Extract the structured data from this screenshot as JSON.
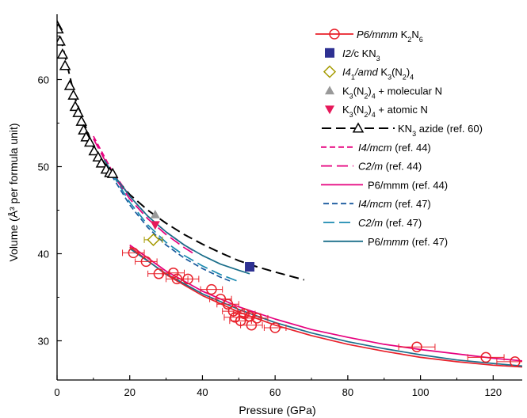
{
  "chart_data": {
    "type": "scatter",
    "xlabel": "Pressure (GPa)",
    "ylabel": "Volume (Å³ per formula unit)",
    "xlim": [
      0,
      128
    ],
    "ylim": [
      25.5,
      67.5
    ],
    "xticks": [
      0,
      20,
      40,
      60,
      80,
      100,
      120
    ],
    "yticks": [
      30,
      40,
      50,
      60
    ],
    "legend_position": "top-right",
    "grid": false,
    "series": [
      {
        "key": "k2n6",
        "label_parts": [
          {
            "t": "P6/mmm",
            "i": true
          },
          {
            "t": " K"
          },
          {
            "t": "2",
            "sub": true
          },
          {
            "t": "N"
          },
          {
            "t": "6",
            "sub": true
          }
        ],
        "color": "#e8202a",
        "kind": "scatter-line",
        "marker": "circle-open",
        "points": [
          [
            21,
            40.1,
            3,
            0
          ],
          [
            24.5,
            39.1,
            3,
            0
          ],
          [
            28,
            37.7,
            3,
            0
          ],
          [
            32,
            37.8,
            3,
            0
          ],
          [
            33,
            37.1,
            3,
            0
          ],
          [
            36,
            37.1,
            3,
            0
          ],
          [
            42.5,
            35.9,
            3,
            0
          ],
          [
            45,
            34.8,
            3,
            0
          ],
          [
            47,
            34.2,
            3,
            0
          ],
          [
            48.5,
            33.4,
            3,
            0
          ],
          [
            49,
            32.7,
            3,
            0
          ],
          [
            50.5,
            32.3,
            3,
            0
          ],
          [
            51.5,
            33.1,
            3,
            0
          ],
          [
            53,
            32.8,
            3,
            0
          ],
          [
            53.5,
            31.8,
            3,
            0
          ],
          [
            55,
            32.6,
            3,
            0
          ],
          [
            60,
            31.5,
            3,
            0
          ],
          [
            99,
            29.3,
            5,
            0
          ],
          [
            118,
            28.1,
            5,
            0
          ],
          [
            126,
            27.6,
            5,
            0
          ]
        ],
        "fit": [
          [
            20,
            40.8
          ],
          [
            30,
            37.6
          ],
          [
            40,
            35.2
          ],
          [
            50,
            33.3
          ],
          [
            60,
            31.8
          ],
          [
            70,
            30.6
          ],
          [
            80,
            29.6
          ],
          [
            90,
            28.8
          ],
          [
            100,
            28.1
          ],
          [
            110,
            27.6
          ],
          [
            120,
            27.2
          ],
          [
            128,
            27.0
          ]
        ]
      },
      {
        "key": "kn3-i2c",
        "label_parts": [
          {
            "t": "I2/",
            "i": true
          },
          {
            "t": "c KN"
          },
          {
            "t": "3",
            "sub": true
          }
        ],
        "color": "#2e3192",
        "kind": "scatter",
        "marker": "square-filled",
        "points": [
          [
            53,
            38.5
          ]
        ]
      },
      {
        "key": "k3n2-i41",
        "label_parts": [
          {
            "t": "I4",
            "i": true
          },
          {
            "t": "1",
            "sub": true
          },
          {
            "t": "/amd",
            "i": true
          },
          {
            "t": " K"
          },
          {
            "t": "3",
            "sub": true
          },
          {
            "t": "(N"
          },
          {
            "t": "2",
            "sub": true
          },
          {
            "t": ")"
          },
          {
            "t": "4",
            "sub": true
          }
        ],
        "color": "#a59a00",
        "kind": "scatter",
        "marker": "diamond-open",
        "points": [
          [
            26.5,
            41.6,
            2.5,
            0
          ]
        ]
      },
      {
        "key": "mol-n",
        "label_parts": [
          {
            "t": "K"
          },
          {
            "t": "3",
            "sub": true
          },
          {
            "t": "(N"
          },
          {
            "t": "2",
            "sub": true
          },
          {
            "t": ")"
          },
          {
            "t": "4",
            "sub": true
          },
          {
            "t": " + molecular N"
          }
        ],
        "color": "#999999",
        "kind": "scatter",
        "marker": "triangle-up-filled",
        "points": [
          [
            27,
            44.5
          ]
        ]
      },
      {
        "key": "atom-n",
        "label_parts": [
          {
            "t": "K"
          },
          {
            "t": "3",
            "sub": true
          },
          {
            "t": "(N"
          },
          {
            "t": "2",
            "sub": true
          },
          {
            "t": ")"
          },
          {
            "t": "4",
            "sub": true
          },
          {
            "t": " + atomic N"
          }
        ],
        "color": "#e6195a",
        "kind": "scatter",
        "marker": "triangle-down-filled",
        "points": [
          [
            27,
            43.3
          ]
        ]
      },
      {
        "key": "kn3-azide",
        "label_parts": [
          {
            "t": "KN"
          },
          {
            "t": "3",
            "sub": true
          },
          {
            "t": " azide (ref. 60)"
          }
        ],
        "color": "#000000",
        "kind": "scatter-line",
        "marker": "triangle-up-open",
        "dash": "12,6",
        "points": [
          [
            0,
            66.2
          ],
          [
            0.3,
            65.8
          ],
          [
            0.8,
            64.4
          ],
          [
            1.5,
            62.9
          ],
          [
            2.2,
            61.6
          ],
          [
            3.5,
            59.3
          ],
          [
            4.5,
            58.2
          ],
          [
            5.0,
            56.9
          ],
          [
            5.8,
            56.2
          ],
          [
            6.7,
            55.2
          ],
          [
            7.3,
            54.2
          ],
          [
            8.0,
            53.4
          ],
          [
            9.0,
            52.8
          ],
          [
            10.2,
            51.8
          ],
          [
            11.3,
            51.1
          ],
          [
            12.2,
            50.4
          ],
          [
            13.5,
            49.7
          ],
          [
            14.5,
            49.3
          ],
          [
            15.3,
            49.2
          ]
        ],
        "fit": [
          [
            0,
            66.5
          ],
          [
            5,
            57.8
          ],
          [
            10,
            52.2
          ],
          [
            15,
            49.2
          ],
          [
            20,
            46.8
          ],
          [
            25,
            45.0
          ],
          [
            30,
            43.5
          ],
          [
            35,
            42.2
          ],
          [
            40,
            41.1
          ],
          [
            45,
            40.1
          ],
          [
            50,
            39.2
          ],
          [
            55,
            38.5
          ],
          [
            60,
            37.9
          ],
          [
            68,
            37.0
          ]
        ]
      },
      {
        "key": "i4mcm-44",
        "label_parts": [
          {
            "t": "I4/mcm",
            "i": true
          },
          {
            "t": " (ref. 44)"
          }
        ],
        "color": "#e6007e",
        "kind": "line",
        "dash": "7,4",
        "fit": [
          [
            10,
            53.5
          ],
          [
            15,
            49.6
          ],
          [
            20,
            46.6
          ],
          [
            25,
            44.3
          ],
          [
            30,
            42.5
          ],
          [
            35,
            41.0
          ],
          [
            38,
            40.2
          ]
        ]
      },
      {
        "key": "c2m-44",
        "label_parts": [
          {
            "t": "C2/m",
            "i": true
          },
          {
            "t": " (ref. 44)"
          }
        ],
        "color": "#e6007e",
        "kind": "line",
        "dash": "14,6",
        "fit": [
          [
            10,
            53.2
          ],
          [
            15,
            49.3
          ],
          [
            20,
            46.3
          ],
          [
            25,
            44.0
          ],
          [
            30,
            42.2
          ],
          [
            35,
            40.7
          ],
          [
            38,
            39.9
          ]
        ]
      },
      {
        "key": "p6mmm-44",
        "label_parts": [
          {
            "t": "P6/mmm (ref. 44)"
          }
        ],
        "color": "#e6007e",
        "kind": "line",
        "dash": "",
        "fit": [
          [
            20,
            41.0
          ],
          [
            30,
            38.0
          ],
          [
            40,
            35.7
          ],
          [
            50,
            33.9
          ],
          [
            60,
            32.5
          ],
          [
            70,
            31.3
          ],
          [
            80,
            30.4
          ],
          [
            90,
            29.6
          ],
          [
            100,
            29.0
          ],
          [
            110,
            28.5
          ],
          [
            120,
            28.0
          ],
          [
            128,
            27.7
          ]
        ]
      },
      {
        "key": "i4mcm-47",
        "label_parts": [
          {
            "t": "I4/mcm",
            "i": true
          },
          {
            "t": " (ref. 47)"
          }
        ],
        "color": "#1a5a9e",
        "kind": "line",
        "dash": "7,4",
        "fit": [
          [
            15,
            49.0
          ],
          [
            20,
            45.6
          ],
          [
            25,
            43.0
          ],
          [
            30,
            41.0
          ],
          [
            35,
            39.5
          ],
          [
            40,
            38.3
          ],
          [
            45,
            37.3
          ],
          [
            48,
            36.8
          ]
        ]
      },
      {
        "key": "c2m-47",
        "label_parts": [
          {
            "t": "C2/m",
            "i": true
          },
          {
            "t": " (ref. 47)"
          }
        ],
        "color": "#1a8ab0",
        "kind": "line",
        "dash": "14,6",
        "fit": [
          [
            15,
            49.3
          ],
          [
            20,
            45.9
          ],
          [
            25,
            43.3
          ],
          [
            30,
            41.3
          ],
          [
            35,
            39.8
          ],
          [
            40,
            38.6
          ],
          [
            45,
            37.6
          ],
          [
            50,
            36.8
          ]
        ]
      },
      {
        "key": "p6mmm-47",
        "label_parts": [
          {
            "t": "P6/"
          },
          {
            "t": "mmm",
            "i": true
          },
          {
            "t": " (ref. 47)"
          }
        ],
        "color": "#1a6e8a",
        "kind": "line",
        "dash": "",
        "fit": [
          [
            13,
            50.8
          ],
          [
            15,
            49.4
          ],
          [
            20,
            46.6
          ],
          [
            25,
            44.3
          ],
          [
            30,
            42.5
          ],
          [
            35,
            41.0
          ],
          [
            40,
            39.8
          ],
          [
            45,
            38.8
          ],
          [
            50,
            38.1
          ],
          [
            53,
            37.7
          ]
        ],
        "fit2": [
          [
            20,
            40.6
          ],
          [
            30,
            37.7
          ],
          [
            40,
            35.4
          ],
          [
            50,
            33.6
          ],
          [
            60,
            32.1
          ],
          [
            70,
            30.9
          ],
          [
            80,
            29.9
          ],
          [
            90,
            29.1
          ],
          [
            100,
            28.4
          ],
          [
            110,
            27.8
          ],
          [
            120,
            27.4
          ],
          [
            128,
            27.1
          ]
        ]
      }
    ]
  }
}
